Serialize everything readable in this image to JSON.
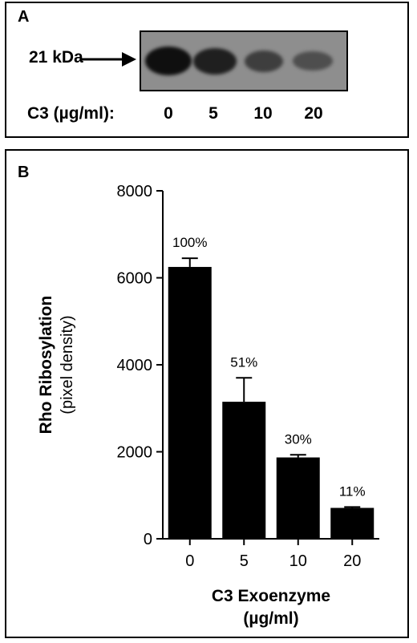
{
  "panel_a": {
    "label": "A",
    "marker_label": "21 kDa",
    "concentration_label": "C3 (µg/ml):",
    "concentrations": [
      "0",
      "5",
      "10",
      "20"
    ],
    "band_intensities": [
      1.0,
      0.85,
      0.55,
      0.4
    ]
  },
  "panel_b": {
    "label": "B"
  },
  "chart_data": {
    "type": "bar",
    "categories": [
      "0",
      "5",
      "10",
      "20"
    ],
    "values": [
      6250,
      3150,
      1870,
      710
    ],
    "errors": [
      200,
      550,
      60,
      20
    ],
    "data_labels": [
      "100%",
      "51%",
      "30%",
      "11%"
    ],
    "ylabel": "Rho Ribosylation",
    "ylabel_sub": "(pixel density)",
    "xlabel": "C3 Exoenzyme",
    "xlabel_sub": "(µg/ml)",
    "ylim": [
      0,
      8000
    ],
    "yticks": [
      0,
      2000,
      4000,
      6000,
      8000
    ],
    "bar_color": "#000000",
    "grid": false
  }
}
